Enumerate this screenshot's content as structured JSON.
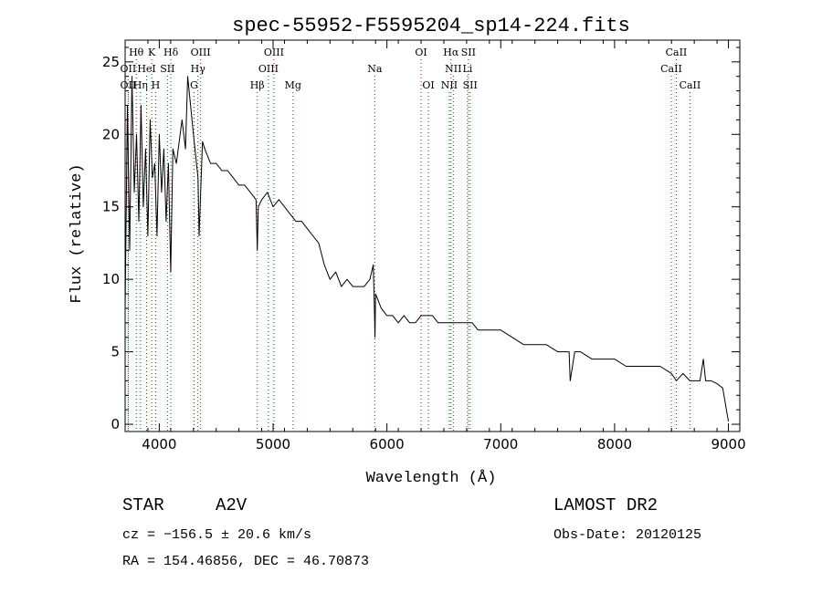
{
  "chart_data": {
    "type": "line",
    "title": "spec-55952-F5595204_sp14-224.fits",
    "xlabel": "Wavelength (Å)",
    "ylabel": "Flux (relative)",
    "xlim": [
      3700,
      9100
    ],
    "ylim": [
      -0.5,
      26.5
    ],
    "xticks": [
      4000,
      5000,
      6000,
      7000,
      8000,
      9000
    ],
    "yticks": [
      0,
      5,
      10,
      15,
      20,
      25
    ],
    "grid": false,
    "legend": "none",
    "line_color": "#000000",
    "marker_color": "#cc0000",
    "series": [
      {
        "x": [
          3700,
          3720,
          3740,
          3760,
          3780,
          3800,
          3820,
          3840,
          3860,
          3880,
          3900,
          3920,
          3940,
          3960,
          3980,
          4000,
          4020,
          4040,
          4060,
          4080,
          4100,
          4120,
          4150,
          4200,
          4230,
          4250,
          4300,
          4340,
          4350,
          4380,
          4400,
          4450,
          4500,
          4550,
          4600,
          4650,
          4700,
          4750,
          4800,
          4850,
          4861,
          4870,
          4900,
          4950,
          5000,
          5050,
          5100,
          5150,
          5200,
          5250,
          5300,
          5350,
          5400,
          5450,
          5500,
          5550,
          5600,
          5650,
          5700,
          5750,
          5800,
          5850,
          5880,
          5890,
          5895,
          5900,
          5950,
          6000,
          6050,
          6100,
          6150,
          6200,
          6250,
          6300,
          6350,
          6400,
          6450,
          6500,
          6550,
          6600,
          6650,
          6700,
          6750,
          6800,
          6850,
          6900,
          6950,
          7000,
          7100,
          7200,
          7300,
          7400,
          7500,
          7600,
          7610,
          7650,
          7700,
          7800,
          7900,
          8000,
          8100,
          8200,
          8300,
          8400,
          8500,
          8542,
          8600,
          8662,
          8700,
          8750,
          8780,
          8800,
          8850,
          8900,
          8950,
          9000
        ],
        "y": [
          8,
          22,
          12,
          24,
          16,
          20,
          14,
          22,
          15,
          19,
          13,
          21,
          17,
          18,
          13,
          20,
          16,
          19,
          14,
          18,
          10.5,
          19,
          18,
          21,
          19,
          24,
          20,
          17,
          13,
          19.5,
          19,
          18,
          18,
          17.5,
          17.5,
          17,
          16.5,
          16.5,
          16,
          15.5,
          12,
          15,
          15.5,
          16,
          15,
          15.5,
          15,
          14.5,
          14,
          14,
          13.5,
          13,
          12.5,
          11,
          10,
          10.5,
          9.5,
          10,
          9.5,
          9.5,
          9.5,
          10,
          11,
          8,
          6,
          9,
          8,
          7.5,
          7.5,
          7,
          7.5,
          7,
          7,
          7.5,
          7.5,
          7.5,
          7,
          7,
          7,
          7,
          7,
          7,
          7,
          6.5,
          6.5,
          6.5,
          6.5,
          6.5,
          6,
          5.5,
          5.5,
          5.5,
          5,
          5,
          3,
          5,
          5,
          4.5,
          4.5,
          4.5,
          4,
          4,
          4,
          4,
          3.5,
          3,
          3.5,
          3,
          3,
          3,
          4.5,
          3,
          3,
          2.8,
          2.5,
          0.2
        ]
      }
    ],
    "lines": [
      {
        "label": "Hθ",
        "wl": 3798,
        "row": 0
      },
      {
        "label": "OII",
        "wl": 3727,
        "row": 1
      },
      {
        "label": "OII",
        "wl": 3727,
        "row": 2
      },
      {
        "label": "Hη",
        "wl": 3835,
        "row": 2
      },
      {
        "label": "HeI",
        "wl": 3889,
        "row": 1
      },
      {
        "label": "K",
        "wl": 3934,
        "row": 0
      },
      {
        "label": "SII",
        "wl": 4072,
        "row": 1
      },
      {
        "label": "H",
        "wl": 3968,
        "row": 2
      },
      {
        "label": "Hδ",
        "wl": 4102,
        "row": 0
      },
      {
        "label": "OIII",
        "wl": 4363,
        "row": 0
      },
      {
        "label": "Hγ",
        "wl": 4340,
        "row": 1
      },
      {
        "label": "G",
        "wl": 4305,
        "row": 2
      },
      {
        "label": "Hβ",
        "wl": 4861,
        "row": 2
      },
      {
        "label": "OIII",
        "wl": 5007,
        "row": 0
      },
      {
        "label": "OIII",
        "wl": 4959,
        "row": 1
      },
      {
        "label": "Mg",
        "wl": 5175,
        "row": 2
      },
      {
        "label": "Na",
        "wl": 5893,
        "row": 1
      },
      {
        "label": "OI",
        "wl": 6300,
        "row": 0
      },
      {
        "label": "OI",
        "wl": 6364,
        "row": 2
      },
      {
        "label": "Hα",
        "wl": 6563,
        "row": 0
      },
      {
        "label": "SII",
        "wl": 6716,
        "row": 0
      },
      {
        "label": "NII",
        "wl": 6583,
        "row": 1
      },
      {
        "label": "Li",
        "wl": 6708,
        "row": 1
      },
      {
        "label": "NII",
        "wl": 6548,
        "row": 2
      },
      {
        "label": "SII",
        "wl": 6731,
        "row": 2
      },
      {
        "label": "CaII",
        "wl": 8542,
        "row": 0
      },
      {
        "label": "CaII",
        "wl": 8498,
        "row": 1
      },
      {
        "label": "CaII",
        "wl": 8662,
        "row": 2
      }
    ]
  },
  "info": {
    "class_label": "STAR",
    "subclass": "A2V",
    "survey": "LAMOST DR2",
    "cz": "cz = −156.5 ± 20.6 km/s",
    "obs_date": "Obs-Date: 20120125",
    "coords": "RA = 154.46856, DEC =  46.70873"
  }
}
